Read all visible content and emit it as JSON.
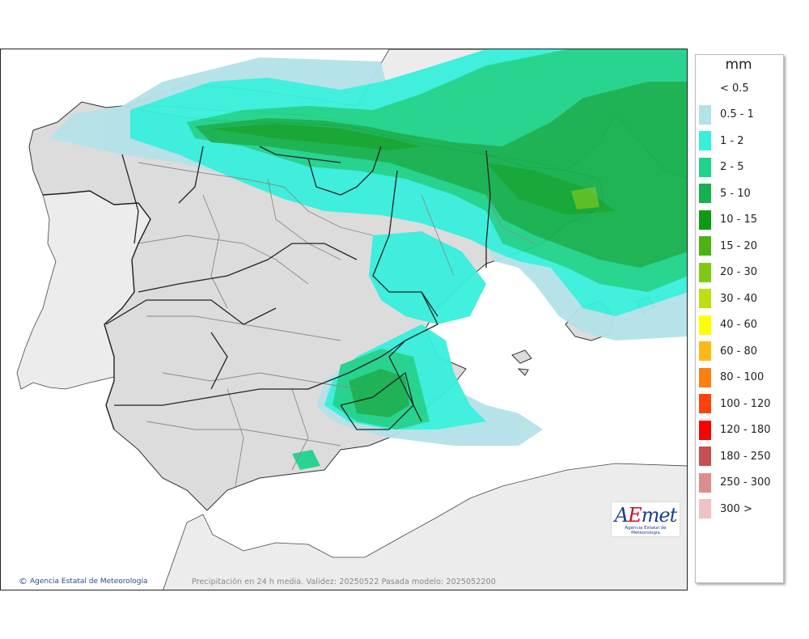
{
  "legend": {
    "title": "mm",
    "items": [
      {
        "label": "< 0.5",
        "color": ""
      },
      {
        "label": "0.5 - 1",
        "color": "#b3e2e8"
      },
      {
        "label": "1 - 2",
        "color": "#37f0dc"
      },
      {
        "label": "2 - 5",
        "color": "#1fd38b"
      },
      {
        "label": "5 - 10",
        "color": "#15b14e"
      },
      {
        "label": "10 - 15",
        "color": "#0e9a12"
      },
      {
        "label": "15 - 20",
        "color": "#4bb411"
      },
      {
        "label": "20 - 30",
        "color": "#80ca14"
      },
      {
        "label": "30 - 40",
        "color": "#bde015"
      },
      {
        "label": "40 - 60",
        "color": "#ffff00"
      },
      {
        "label": "60 - 80",
        "color": "#fdb914"
      },
      {
        "label": "80 - 100",
        "color": "#fd7f0f"
      },
      {
        "label": "100 - 120",
        "color": "#fd420c"
      },
      {
        "label": "120 - 180",
        "color": "#fe0000"
      },
      {
        "label": "180 - 250",
        "color": "#c84f4f"
      },
      {
        "label": "250 - 300",
        "color": "#dc8e8e"
      },
      {
        "label": "300 >",
        "color": "#edc3c3"
      }
    ]
  },
  "credit": "Agencia Estatal de Meteorología",
  "caption": "Precipitación en 24 h media. Validez: 20250522 Pasada modelo: 2025052200",
  "logo": {
    "text_a": "A",
    "text_e": "E",
    "text_met": "met",
    "subtitle": "Agencia Estatal de Meteorología"
  },
  "colors": {
    "land_spain": "#dcdcdc",
    "land_other": "#ececec",
    "sea": "#ffffff",
    "border": "#222222",
    "admin": "#8a8a8a"
  }
}
